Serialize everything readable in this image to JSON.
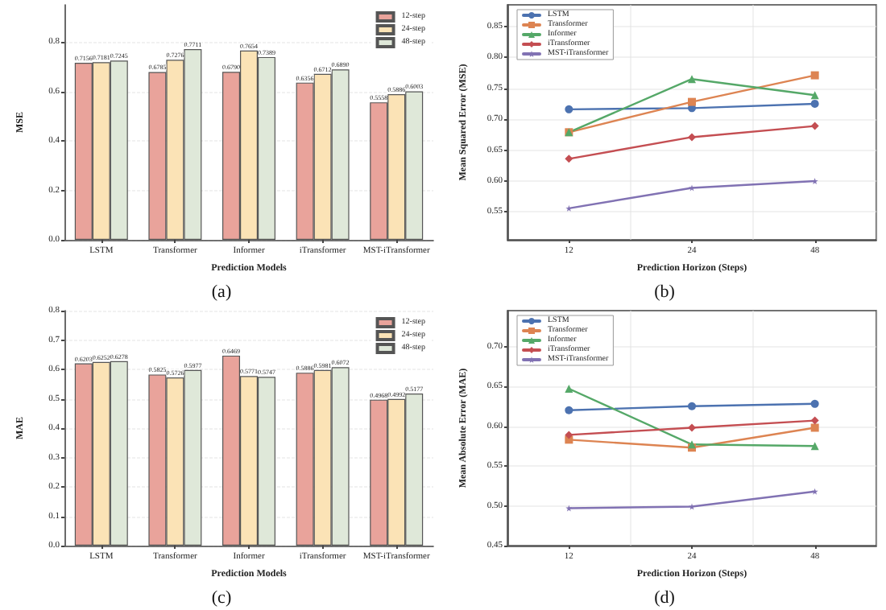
{
  "chart_data": [
    {
      "type": "bar",
      "xlabel": "Prediction Models",
      "ylabel": "MSE",
      "annotations": [
        "(a)"
      ],
      "categories": [
        "LSTM",
        "Transformer",
        "Informer",
        "iTransformer",
        "MST-iTransformer"
      ],
      "series": [
        {
          "name": "12-step",
          "color": "#e9a39b",
          "values": [
            0.7156,
            0.6785,
            0.679,
            0.6356,
            0.5558
          ],
          "value_labels": [
            "0.7156",
            "0.6785",
            "0.6790",
            "0.6356",
            "0.5558"
          ]
        },
        {
          "name": "24-step",
          "color": "#fbe3b6",
          "values": [
            0.7181,
            0.7276,
            0.7654,
            0.6712,
            0.5886
          ],
          "value_labels": [
            "0.7181",
            "0.7276",
            "0.7654",
            "0.6712",
            "0.5886"
          ]
        },
        {
          "name": "48-step",
          "color": "#dfe8d9",
          "values": [
            0.7245,
            0.7711,
            0.7389,
            0.689,
            0.6003
          ],
          "value_labels": [
            "0.7245",
            "0.7711",
            "0.7389",
            "0.6890",
            "0.6003"
          ]
        }
      ],
      "ylim": [
        0,
        0.95
      ],
      "yticks": [
        {
          "value": 0,
          "label": "0.0"
        },
        0.2,
        0.4,
        0.6,
        0.8
      ],
      "grid": "y",
      "legend": "top right"
    },
    {
      "type": "line",
      "xlabel": "Prediction Horizon (Steps)",
      "ylabel": "Mean Squared Error (MSE)",
      "annotations": [
        "(b)"
      ],
      "categories": [
        "12",
        "24",
        "48"
      ],
      "series": [
        {
          "name": "LSTM",
          "color": "#4c72b0",
          "marker": "circle",
          "values": [
            0.716,
            0.718,
            0.725
          ]
        },
        {
          "name": "Transformer",
          "color": "#dd8452",
          "marker": "square",
          "values": [
            0.679,
            0.728,
            0.771
          ]
        },
        {
          "name": "Informer",
          "color": "#55a868",
          "marker": "triangle",
          "values": [
            0.679,
            0.765,
            0.739
          ]
        },
        {
          "name": "iTransformer",
          "color": "#c44e52",
          "marker": "diamond",
          "values": [
            0.636,
            0.671,
            0.689
          ]
        },
        {
          "name": "MST-iTransformer",
          "color": "#8172b3",
          "marker": "star",
          "values": [
            0.556,
            0.589,
            0.6
          ]
        }
      ],
      "ylim": [
        0.505,
        0.885
      ],
      "yticks": [
        0.55,
        {
          "value": 0.6,
          "label": "0.60"
        },
        0.65,
        {
          "value": 0.7,
          "label": "0.70"
        },
        0.75,
        {
          "value": 0.8,
          "label": "0.80"
        },
        0.85
      ],
      "grid": true,
      "legend": "top left",
      "line_style": "solid"
    },
    {
      "type": "bar",
      "xlabel": "Prediction Models",
      "ylabel": "MAE",
      "annotations": [
        "(c)"
      ],
      "categories": [
        "LSTM",
        "Transformer",
        "Informer",
        "iTransformer",
        "MST-iTransformer"
      ],
      "series": [
        {
          "name": "12-step",
          "color": "#e9a39b",
          "values": [
            0.6203,
            0.5825,
            0.6469,
            0.5886,
            0.4968
          ],
          "value_labels": [
            "0.6203",
            "0.5825",
            "0.6469",
            "0.5886",
            "0.4968"
          ]
        },
        {
          "name": "24-step",
          "color": "#fbe3b6",
          "values": [
            0.6252,
            0.5726,
            0.5771,
            0.5981,
            0.4992
          ],
          "value_labels": [
            "0.6252",
            "0.5726",
            "0.5771",
            "0.5981",
            "0.4992"
          ]
        },
        {
          "name": "48-step",
          "color": "#dfe8d9",
          "values": [
            0.6278,
            0.5977,
            0.5747,
            0.6072,
            0.5177
          ],
          "value_labels": [
            "0.6278",
            "0.5977",
            "0.5747",
            "0.6072",
            "0.5177"
          ]
        }
      ],
      "ylim": [
        0,
        0.8
      ],
      "yticks": [
        {
          "value": 0,
          "label": "0.0"
        },
        0.1,
        0.2,
        0.3,
        0.4,
        0.5,
        0.6,
        0.7,
        0.8
      ],
      "grid": "y",
      "legend": "top right"
    },
    {
      "type": "line",
      "xlabel": "Prediction Horizon (Steps)",
      "ylabel": "Mean Absolute Error (MAE)",
      "annotations": [
        "(d)"
      ],
      "categories": [
        "12",
        "24",
        "48"
      ],
      "series": [
        {
          "name": "LSTM",
          "color": "#4c72b0",
          "marker": "circle",
          "values": [
            0.62,
            0.625,
            0.628
          ]
        },
        {
          "name": "Transformer",
          "color": "#dd8452",
          "marker": "square",
          "values": [
            0.583,
            0.573,
            0.598
          ]
        },
        {
          "name": "Informer",
          "color": "#55a868",
          "marker": "triangle",
          "values": [
            0.647,
            0.577,
            0.575
          ]
        },
        {
          "name": "iTransformer",
          "color": "#c44e52",
          "marker": "diamond",
          "values": [
            0.589,
            0.598,
            0.607
          ]
        },
        {
          "name": "MST-iTransformer",
          "color": "#8172b3",
          "marker": "star",
          "values": [
            0.497,
            0.499,
            0.518
          ]
        }
      ],
      "ylim": [
        0.45,
        0.745
      ],
      "yticks": [
        {
          "value": 0.45,
          "label": "0.45"
        },
        {
          "value": 0.5,
          "label": "0.50"
        },
        0.55,
        {
          "value": 0.6,
          "label": "0.60"
        },
        0.65,
        {
          "value": 0.7,
          "label": "0.70"
        }
      ],
      "grid": true,
      "legend": "top left",
      "line_style": "solid"
    }
  ]
}
